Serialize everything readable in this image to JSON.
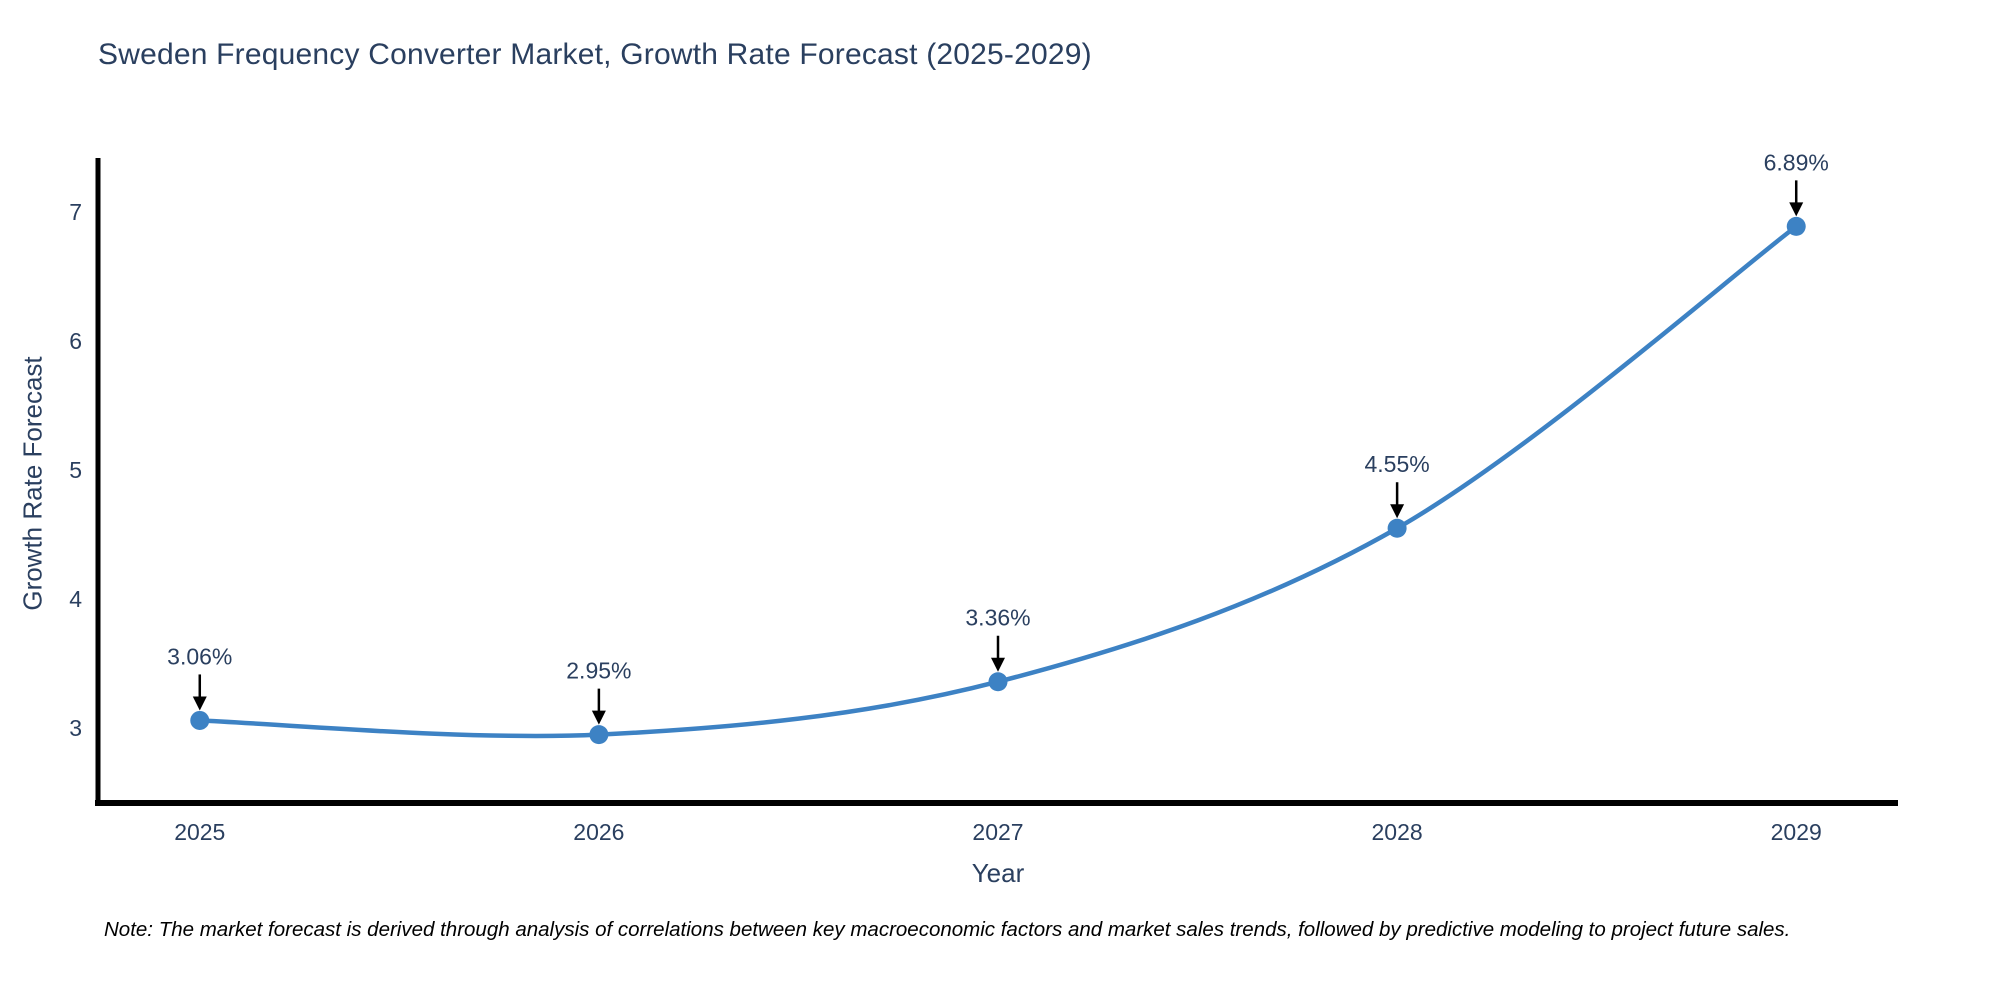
{
  "chart_data": {
    "type": "line",
    "title": "Sweden Frequency Converter Market, Growth Rate Forecast (2025-2029)",
    "xlabel": "Year",
    "ylabel": "Growth Rate Forecast",
    "x": [
      2025,
      2026,
      2027,
      2028,
      2029
    ],
    "values": [
      3.06,
      2.95,
      3.36,
      4.55,
      6.89
    ],
    "point_labels": [
      "3.06%",
      "2.95%",
      "3.36%",
      "4.55%",
      "6.89%"
    ],
    "x_tick_labels": [
      "2025",
      "2026",
      "2027",
      "2028",
      "2029"
    ],
    "y_ticks": [
      3,
      4,
      5,
      6,
      7
    ],
    "xlim": [
      2024.745,
      2029.255
    ],
    "ylim": [
      2.42,
      7.42
    ],
    "line_shape": "spline",
    "grid": false,
    "legend_position": "none",
    "line_color": "#3d82c4",
    "marker_color": "#3d82c4",
    "annotation_arrow_color": "#000000",
    "axis_color": "#000000",
    "text_color": "#2a3f5f"
  },
  "note": "Note: The market forecast is derived through analysis of correlations between key macroeconomic factors and market sales trends, followed by predictive modeling to project future sales."
}
